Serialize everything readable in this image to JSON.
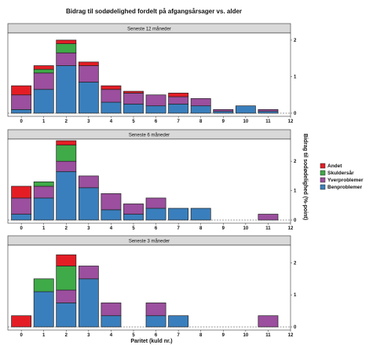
{
  "chart_data": {
    "type": "bar",
    "stacked": true,
    "title": "Bidrag til sodødelighed fordelt på afgangsårsager vs. alder",
    "xlabel": "Paritet (kuld nr.)",
    "ylabel": "Bidrag til sodødelighed (%-point)",
    "categories": [
      0,
      1,
      2,
      3,
      4,
      5,
      6,
      7,
      8,
      9,
      10,
      11
    ],
    "x_ticks": [
      0,
      1,
      2,
      3,
      4,
      5,
      6,
      7,
      8,
      9,
      10,
      11,
      12
    ],
    "y_ticks": [
      0,
      1,
      2
    ],
    "legend": {
      "placement": "right",
      "order": [
        "Andet",
        "Skuldersår",
        "Yverproblemer",
        "Benproblemer"
      ]
    },
    "colors": {
      "Benproblemer": "#3a7fbd",
      "Yverproblemer": "#9b4f9e",
      "Skuldersår": "#3faa48",
      "Andet": "#e41d25"
    },
    "panels": [
      {
        "strip": "Seneste 12 måneder",
        "ylim": [
          0,
          2.15
        ],
        "series": [
          {
            "name": "Benproblemer",
            "values": [
              0.1,
              0.65,
              1.3,
              0.85,
              0.3,
              0.25,
              0.2,
              0.25,
              0.2,
              0.05,
              0.2,
              0.05
            ]
          },
          {
            "name": "Yverproblemer",
            "values": [
              0.4,
              0.45,
              0.35,
              0.45,
              0.35,
              0.3,
              0.3,
              0.2,
              0.2,
              0.05,
              0.0,
              0.05
            ]
          },
          {
            "name": "Skuldersår",
            "values": [
              0.0,
              0.1,
              0.25,
              0.0,
              0.0,
              0.0,
              0.0,
              0.0,
              0.0,
              0.0,
              0.0,
              0.0
            ]
          },
          {
            "name": "Andet",
            "values": [
              0.25,
              0.1,
              0.1,
              0.1,
              0.1,
              0.05,
              0.0,
              0.1,
              0.0,
              0.0,
              0.0,
              0.0
            ]
          }
        ]
      },
      {
        "strip": "Seneste 6 måneder",
        "ylim": [
          0,
          2.7
        ],
        "series": [
          {
            "name": "Benproblemer",
            "values": [
              0.2,
              0.75,
              1.65,
              1.1,
              0.35,
              0.2,
              0.4,
              0.4,
              0.4,
              0.0,
              0.0,
              0.0
            ]
          },
          {
            "name": "Yverproblemer",
            "values": [
              0.55,
              0.4,
              0.35,
              0.4,
              0.55,
              0.35,
              0.35,
              0.0,
              0.0,
              0.0,
              0.0,
              0.2
            ]
          },
          {
            "name": "Skuldersår",
            "values": [
              0.0,
              0.15,
              0.55,
              0.0,
              0.0,
              0.0,
              0.0,
              0.0,
              0.0,
              0.0,
              0.0,
              0.0
            ]
          },
          {
            "name": "Andet",
            "values": [
              0.4,
              0.0,
              0.15,
              0.0,
              0.0,
              0.0,
              0.0,
              0.0,
              0.0,
              0.0,
              0.0,
              0.0
            ]
          }
        ]
      },
      {
        "strip": "Seneste 3 måneder",
        "ylim": [
          0,
          2.5
        ],
        "series": [
          {
            "name": "Benproblemer",
            "values": [
              0.0,
              1.1,
              0.75,
              1.5,
              0.35,
              0.0,
              0.35,
              0.35,
              0.0,
              0.0,
              0.0,
              0.0
            ]
          },
          {
            "name": "Yverproblemer",
            "values": [
              0.0,
              0.0,
              0.4,
              0.4,
              0.4,
              0.0,
              0.4,
              0.0,
              0.0,
              0.0,
              0.0,
              0.35
            ]
          },
          {
            "name": "Skuldersår",
            "values": [
              0.0,
              0.4,
              0.75,
              0.0,
              0.0,
              0.0,
              0.0,
              0.0,
              0.0,
              0.0,
              0.0,
              0.0
            ]
          },
          {
            "name": "Andet",
            "values": [
              0.35,
              0.0,
              0.35,
              0.0,
              0.0,
              0.0,
              0.0,
              0.0,
              0.0,
              0.0,
              0.0,
              0.0
            ]
          }
        ]
      }
    ]
  }
}
